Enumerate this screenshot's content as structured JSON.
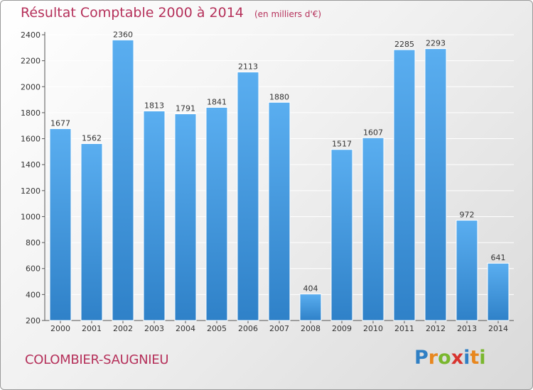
{
  "header": {
    "title": "Résultat Comptable 2000 à 2014",
    "subtitle": "(en milliers d'€)"
  },
  "footer": {
    "commune": "COLOMBIER-SAUGNIEU",
    "logo": {
      "text": "Proxiti",
      "letter_colors": [
        "#2f7fc4",
        "#e8871e",
        "#7ab72e",
        "#d8342f",
        "#2f7fc4",
        "#e8871e",
        "#7ab72e"
      ]
    }
  },
  "colors": {
    "bar_light": "#5aaef0",
    "bar_dark": "#2f81c8",
    "title": "#b5305a",
    "grid": "#ffffff"
  },
  "chart_data": {
    "type": "bar",
    "title": "Résultat Comptable 2000 à 2014",
    "subtitle": "(en milliers d'€)",
    "categories": [
      "2000",
      "2001",
      "2002",
      "2003",
      "2004",
      "2005",
      "2006",
      "2007",
      "2008",
      "2009",
      "2010",
      "2011",
      "2012",
      "2013",
      "2014"
    ],
    "values": [
      1677,
      1562,
      2360,
      1813,
      1791,
      1841,
      2113,
      1880,
      404,
      1517,
      1607,
      2285,
      2293,
      972,
      641
    ],
    "ylim": [
      200,
      2400
    ],
    "yticks": [
      200,
      400,
      600,
      800,
      1000,
      1200,
      1400,
      1600,
      1800,
      2000,
      2200,
      2400
    ],
    "grid": true,
    "data_labels": true
  }
}
